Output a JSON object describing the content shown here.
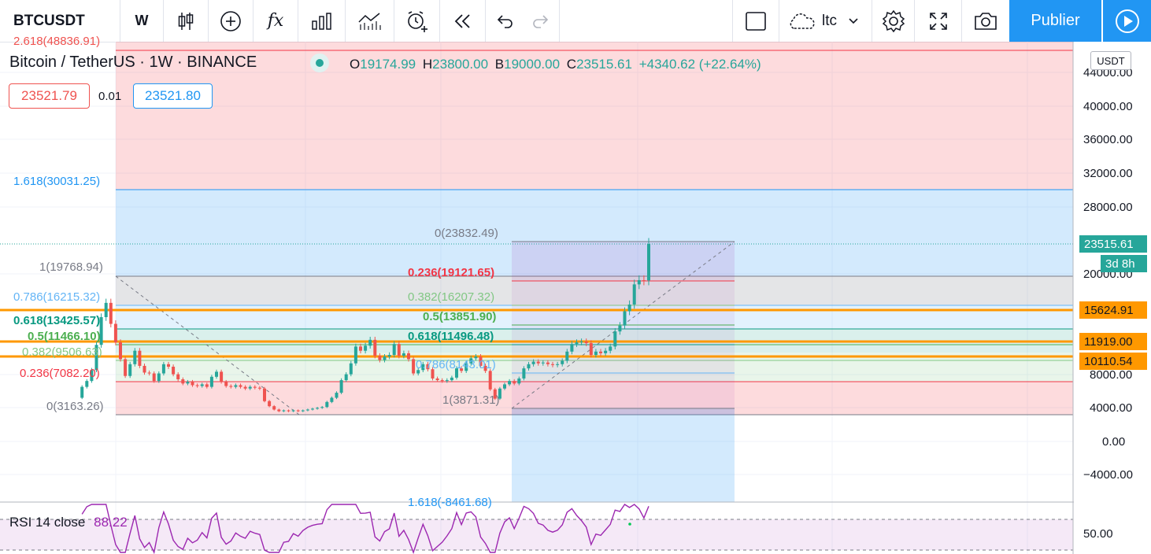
{
  "toolbar": {
    "symbol": "BTCUSDT",
    "interval": "W",
    "indicators_glyph": "fx",
    "compare_label": "ltc",
    "publish_label": "Publier",
    "icons": [
      "candles-icon",
      "add-icon",
      "indicators-icon",
      "templates-icon",
      "compare-icon",
      "alert-icon",
      "replay-icon",
      "undo-icon",
      "redo-icon",
      "layout-icon",
      "cloud-icon",
      "chevron-down-icon",
      "settings-icon",
      "fullscreen-icon",
      "camera-icon",
      "play-icon"
    ]
  },
  "legend": {
    "title": "Bitcoin / TetherUS · 1W · BINANCE",
    "o_label": "O",
    "o": "19174.99",
    "h_label": "H",
    "h": "23800.00",
    "b_label": "B",
    "b": "19000.00",
    "c_label": "C",
    "c": "23515.61",
    "change": "+4340.62 (+22.64%)",
    "bid": "23521.79",
    "spread": "0.01",
    "ask": "23521.80",
    "currency": "USDT",
    "colors": {
      "up": "#26a69a",
      "down": "#ef5350",
      "ask": "#2196f3"
    }
  },
  "price_axis": {
    "labels": [
      "44000.00",
      "40000.00",
      "36000.00",
      "32000.00",
      "28000.00",
      "20000.00",
      "8000.00",
      "4000.00",
      "0.00",
      "−4000.00"
    ],
    "tags": [
      {
        "text": "23515.61",
        "color": "#26a69a",
        "text_color": "#ffffff"
      },
      {
        "text": "3d 8h",
        "color": "#26a69a",
        "text_color": "#ffffff"
      },
      {
        "text": "15624.91",
        "color": "#ff9800",
        "text_color": "#131722"
      },
      {
        "text": "11919.00",
        "color": "#ff9800",
        "text_color": "#131722"
      },
      {
        "text": "10110.54",
        "color": "#ff9800",
        "text_color": "#131722"
      }
    ]
  },
  "fib_left": [
    {
      "text": "2.618(48836.91)",
      "color": "#ef5350"
    },
    {
      "text": "1.618(30031.25)",
      "color": "#2196f3"
    },
    {
      "text": "1(19768.94)",
      "color": "#787b86"
    },
    {
      "text": "0.786(16215.32)",
      "color": "#64b5f6"
    },
    {
      "text": "0.618(13425.57)",
      "color": "#089981"
    },
    {
      "text": "0.5(11466.10)",
      "color": "#4caf50"
    },
    {
      "text": "0.382(9506.63)",
      "color": "#81c784"
    },
    {
      "text": "0.236(7082.20)",
      "color": "#f23645"
    },
    {
      "text": "0(3163.26)",
      "color": "#787b86"
    }
  ],
  "fib_right": [
    {
      "text": "0(23832.49)",
      "color": "#787b86"
    },
    {
      "text": "0.236(19121.65)",
      "color": "#f23645"
    },
    {
      "text": "0.382(16207.32)",
      "color": "#81c784"
    },
    {
      "text": "0.5(13851.90)",
      "color": "#4caf50"
    },
    {
      "text": "0.618(11496.48)",
      "color": "#089981"
    },
    {
      "text": "0.786(8143.01)",
      "color": "#64b5f6"
    },
    {
      "text": "1(3871.31)",
      "color": "#787b86"
    },
    {
      "text": "1.618(-8461.68)",
      "color": "#2196f3"
    }
  ],
  "rsi": {
    "label": "RSI 14 close",
    "value": "88.22",
    "level": "50.00",
    "color": "#9c27b0"
  },
  "chart_data": {
    "type": "candlestick",
    "symbol": "BTCUSDT",
    "interval": "1W",
    "yaxis_ticks": [
      44000,
      40000,
      36000,
      32000,
      28000,
      20000,
      8000,
      4000,
      0,
      -4000
    ],
    "horizontal_lines": [
      15624.91,
      11919.0,
      10110.54
    ],
    "weekly_close_path": [
      [
        0,
        5200
      ],
      [
        2,
        6500
      ],
      [
        3,
        7200
      ],
      [
        4,
        8500
      ],
      [
        5,
        11500
      ],
      [
        6,
        14800
      ],
      [
        7,
        16500
      ],
      [
        8,
        14000
      ],
      [
        9,
        11800
      ],
      [
        10,
        9800
      ],
      [
        11,
        7800
      ],
      [
        12,
        9200
      ],
      [
        13,
        10800
      ],
      [
        14,
        9000
      ],
      [
        15,
        8200
      ],
      [
        16,
        8100
      ],
      [
        17,
        7200
      ],
      [
        18,
        8100
      ],
      [
        19,
        9200
      ],
      [
        20,
        8900
      ],
      [
        21,
        8000
      ],
      [
        22,
        7400
      ],
      [
        23,
        6900
      ],
      [
        24,
        7100
      ],
      [
        25,
        6700
      ],
      [
        26,
        6600
      ],
      [
        27,
        6800
      ],
      [
        28,
        6500
      ],
      [
        29,
        7700
      ],
      [
        30,
        8300
      ],
      [
        31,
        7100
      ],
      [
        32,
        6600
      ],
      [
        33,
        6500
      ],
      [
        34,
        6700
      ],
      [
        35,
        6500
      ],
      [
        36,
        6300
      ],
      [
        37,
        6500
      ],
      [
        38,
        6400
      ],
      [
        39,
        6300
      ],
      [
        40,
        4800
      ],
      [
        41,
        4200
      ],
      [
        42,
        3800
      ],
      [
        43,
        3600
      ],
      [
        44,
        3700
      ],
      [
        45,
        3600
      ],
      [
        46,
        3700
      ],
      [
        47,
        3600
      ],
      [
        48,
        3700
      ],
      [
        49,
        3800
      ],
      [
        50,
        3900
      ],
      [
        51,
        4000
      ],
      [
        52,
        4100
      ],
      [
        53,
        4700
      ],
      [
        54,
        5200
      ],
      [
        55,
        5800
      ],
      [
        56,
        7300
      ],
      [
        57,
        8000
      ],
      [
        58,
        9300
      ],
      [
        59,
        11300
      ],
      [
        60,
        10800
      ],
      [
        61,
        11400
      ],
      [
        62,
        12100
      ],
      [
        63,
        10200
      ],
      [
        64,
        9700
      ],
      [
        65,
        10100
      ],
      [
        66,
        10300
      ],
      [
        67,
        11600
      ],
      [
        68,
        10200
      ],
      [
        69,
        10500
      ],
      [
        70,
        9800
      ],
      [
        71,
        8100
      ],
      [
        72,
        8500
      ],
      [
        73,
        9200
      ],
      [
        74,
        8600
      ],
      [
        75,
        7500
      ],
      [
        76,
        7300
      ],
      [
        77,
        7200
      ],
      [
        78,
        7300
      ],
      [
        79,
        7600
      ],
      [
        80,
        8700
      ],
      [
        81,
        8400
      ],
      [
        82,
        9300
      ],
      [
        83,
        9900
      ],
      [
        84,
        10100
      ],
      [
        85,
        9000
      ],
      [
        86,
        8400
      ],
      [
        87,
        6200
      ],
      [
        88,
        5100
      ],
      [
        89,
        6300
      ],
      [
        90,
        6800
      ],
      [
        91,
        7200
      ],
      [
        92,
        6900
      ],
      [
        93,
        7500
      ],
      [
        94,
        8700
      ],
      [
        95,
        9200
      ],
      [
        96,
        9500
      ],
      [
        97,
        9300
      ],
      [
        98,
        9400
      ],
      [
        99,
        9200
      ],
      [
        100,
        9100
      ],
      [
        101,
        9200
      ],
      [
        102,
        9600
      ],
      [
        103,
        10700
      ],
      [
        104,
        11600
      ],
      [
        105,
        11800
      ],
      [
        106,
        11900
      ],
      [
        107,
        11700
      ],
      [
        108,
        10300
      ],
      [
        109,
        10700
      ],
      [
        110,
        10500
      ],
      [
        111,
        10800
      ],
      [
        112,
        11300
      ],
      [
        113,
        13100
      ],
      [
        114,
        13800
      ],
      [
        115,
        15500
      ],
      [
        116,
        16300
      ],
      [
        117,
        18700
      ],
      [
        118,
        19200
      ],
      [
        119,
        19175
      ],
      [
        120,
        23515
      ]
    ],
    "last": {
      "open": 19174.99,
      "high": 23800.0,
      "low": 19000.0,
      "close": 23515.61,
      "change": 4340.62,
      "change_pct": 22.64
    },
    "rsi_14": {
      "last": 88.22,
      "level": 50
    }
  }
}
